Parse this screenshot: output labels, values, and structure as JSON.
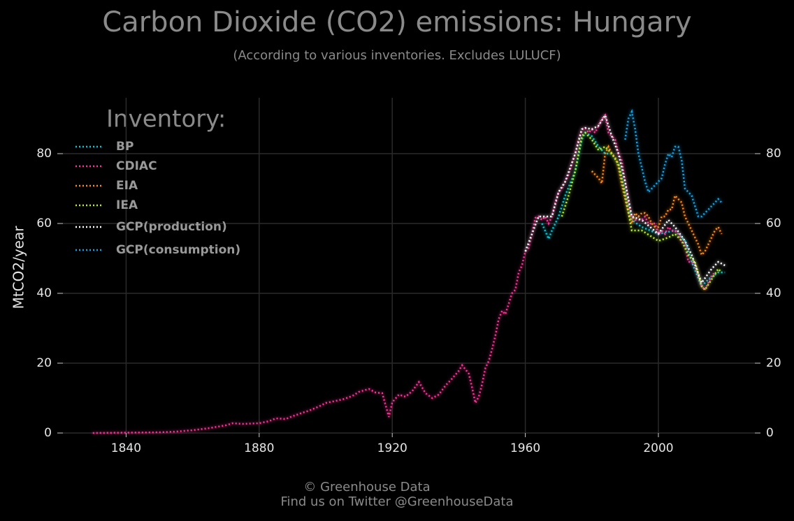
{
  "chart_data": {
    "type": "line",
    "title": "Carbon Dioxide (CO2) emissions: Hungary",
    "subtitle": "(According to various inventories. Excludes LULUCF)",
    "ylabel": "MtCO2/year",
    "legend_title": "Inventory:",
    "legend": "upper left",
    "grid": true,
    "footer": [
      "© Greenhouse Data",
      "Find us on Twitter @GreenhouseData"
    ],
    "xlim": [
      1821,
      2029
    ],
    "xticks": [
      1840,
      1880,
      1920,
      1960,
      2000
    ],
    "ylim": [
      0,
      96
    ],
    "yticks": [
      0,
      20,
      40,
      60,
      80
    ],
    "series": [
      {
        "name": "BP",
        "color": "#00c8d8",
        "x": [
          1965,
          1967,
          1968,
          1970,
          1972,
          1975,
          1977,
          1978,
          1980,
          1982,
          1984,
          1986,
          1988,
          1990,
          1992,
          1995,
          2000,
          2005,
          2008,
          2010,
          2013,
          2015,
          2018,
          2020
        ],
        "values": [
          60,
          55.6,
          58,
          62,
          68,
          75,
          84,
          86,
          85,
          82,
          80,
          80,
          77,
          69,
          61,
          59,
          57,
          58,
          55,
          49,
          42,
          44,
          46,
          46
        ]
      },
      {
        "name": "CDIAC",
        "color": "#ff3399",
        "x": [
          1830,
          1840,
          1850,
          1855,
          1860,
          1865,
          1870,
          1872,
          1875,
          1880,
          1883,
          1885,
          1888,
          1890,
          1893,
          1895,
          1898,
          1900,
          1903,
          1905,
          1908,
          1910,
          1913,
          1915,
          1917,
          1919,
          1920,
          1922,
          1924,
          1926,
          1928,
          1930,
          1932,
          1934,
          1936,
          1938,
          1940,
          1941,
          1943,
          1944,
          1945,
          1946,
          1947,
          1948,
          1949,
          1950,
          1951,
          1952,
          1953,
          1954,
          1955,
          1956,
          1957,
          1958,
          1959,
          1960,
          1961,
          1962,
          1963,
          1964,
          1965,
          1966,
          1967,
          1968,
          1969,
          1970,
          1971,
          1972,
          1973,
          1974,
          1975,
          1976,
          1977,
          1978,
          1979,
          1980,
          1981,
          1982,
          1983,
          1984,
          1985,
          1986,
          1987,
          1988,
          1989,
          1990,
          1991,
          1992,
          1993,
          1994,
          1995,
          1996,
          1997,
          1998,
          1999,
          2000,
          2001,
          2002,
          2003,
          2004,
          2005,
          2006,
          2007,
          2008,
          2009,
          2010,
          2011,
          2012,
          2013,
          2014,
          2015,
          2016,
          2017
        ],
        "values": [
          0,
          0.1,
          0.2,
          0.4,
          0.8,
          1.4,
          2.2,
          2.8,
          2.6,
          2.8,
          3.4,
          4.2,
          4,
          4.8,
          5.8,
          6.4,
          7.6,
          8.6,
          9.2,
          9.6,
          10.6,
          11.8,
          12.6,
          11.6,
          11.4,
          4.6,
          8.8,
          11,
          10.4,
          12,
          14.6,
          11.4,
          10,
          11,
          13.6,
          15.6,
          17.8,
          19.4,
          17,
          13,
          8.6,
          10.4,
          14,
          18.6,
          20.6,
          24,
          28,
          32.6,
          35,
          34,
          37,
          40,
          41,
          46,
          48,
          52,
          53,
          57,
          61.6,
          62,
          61,
          62,
          60,
          62,
          66,
          69,
          70,
          72,
          74,
          77,
          80,
          84,
          87,
          87.4,
          86,
          87,
          86,
          88,
          90,
          91,
          86,
          85,
          84,
          80,
          78,
          72,
          66,
          62,
          61,
          61,
          61,
          62,
          60,
          60,
          60,
          57,
          58,
          57,
          59,
          58,
          58,
          57,
          55,
          54,
          49,
          49,
          48,
          45,
          42,
          41,
          43,
          45,
          46
        ]
      },
      {
        "name": "EIA",
        "color": "#ff8a1a",
        "x": [
          1980,
          1981,
          1982,
          1983,
          1984,
          1985,
          1986,
          1987,
          1988,
          1989,
          1990,
          1991,
          1992,
          1993,
          1994,
          1995,
          1996,
          1997,
          1998,
          1999,
          2000,
          2001,
          2002,
          2003,
          2004,
          2005,
          2006,
          2007,
          2008,
          2009,
          2010,
          2011,
          2012,
          2013,
          2014,
          2015,
          2016,
          2017,
          2018,
          2019
        ],
        "values": [
          75,
          74,
          73,
          71.5,
          80,
          82,
          80,
          79,
          76,
          71,
          67,
          63,
          60,
          63,
          62,
          63,
          63,
          62,
          60,
          59,
          59,
          62,
          62,
          64,
          64,
          68,
          67,
          66,
          62,
          60,
          58,
          56,
          54,
          51,
          52,
          54,
          56,
          58,
          59,
          57
        ]
      },
      {
        "name": "IEA",
        "color": "#b4f028",
        "x": [
          1971,
          1973,
          1975,
          1977,
          1978,
          1980,
          1982,
          1984,
          1986,
          1988,
          1990,
          1992,
          1995,
          2000,
          2003,
          2005,
          2007,
          2009,
          2011,
          2013,
          2014,
          2016,
          2018,
          2019
        ],
        "values": [
          62,
          68,
          75,
          85,
          86,
          84,
          81,
          82,
          80,
          77,
          68,
          58,
          58,
          55,
          56,
          57,
          55,
          51,
          49,
          42,
          41,
          44,
          47,
          46
        ]
      },
      {
        "name": "GCP(production)",
        "color": "#ffffff",
        "x": [
          1960,
          1962,
          1964,
          1966,
          1968,
          1970,
          1972,
          1975,
          1977,
          1978,
          1980,
          1982,
          1984,
          1986,
          1988,
          1990,
          1992,
          1995,
          2000,
          2003,
          2005,
          2008,
          2010,
          2013,
          2016,
          2018,
          2020
        ],
        "values": [
          52,
          57,
          62,
          62,
          62,
          69,
          72,
          80,
          87,
          87.4,
          87,
          88,
          91,
          85,
          80,
          72,
          62,
          61,
          57,
          61,
          59,
          55,
          51,
          43,
          47,
          49,
          48
        ]
      },
      {
        "name": "GCP(consumption)",
        "color": "#14a4e6",
        "x": [
          1990,
          1991,
          1992,
          1993,
          1994,
          1995,
          1996,
          1997,
          1998,
          1999,
          2000,
          2001,
          2002,
          2003,
          2004,
          2005,
          2006,
          2007,
          2008,
          2009,
          2010,
          2011,
          2012,
          2013,
          2014,
          2015,
          2016,
          2017,
          2018,
          2019
        ],
        "values": [
          84,
          90,
          92,
          87,
          80,
          76,
          72,
          69,
          70,
          71,
          72,
          73,
          77,
          80,
          79,
          82,
          82,
          78,
          70,
          69,
          68,
          65,
          62,
          62,
          63,
          64,
          65,
          66,
          67,
          66
        ]
      }
    ]
  }
}
